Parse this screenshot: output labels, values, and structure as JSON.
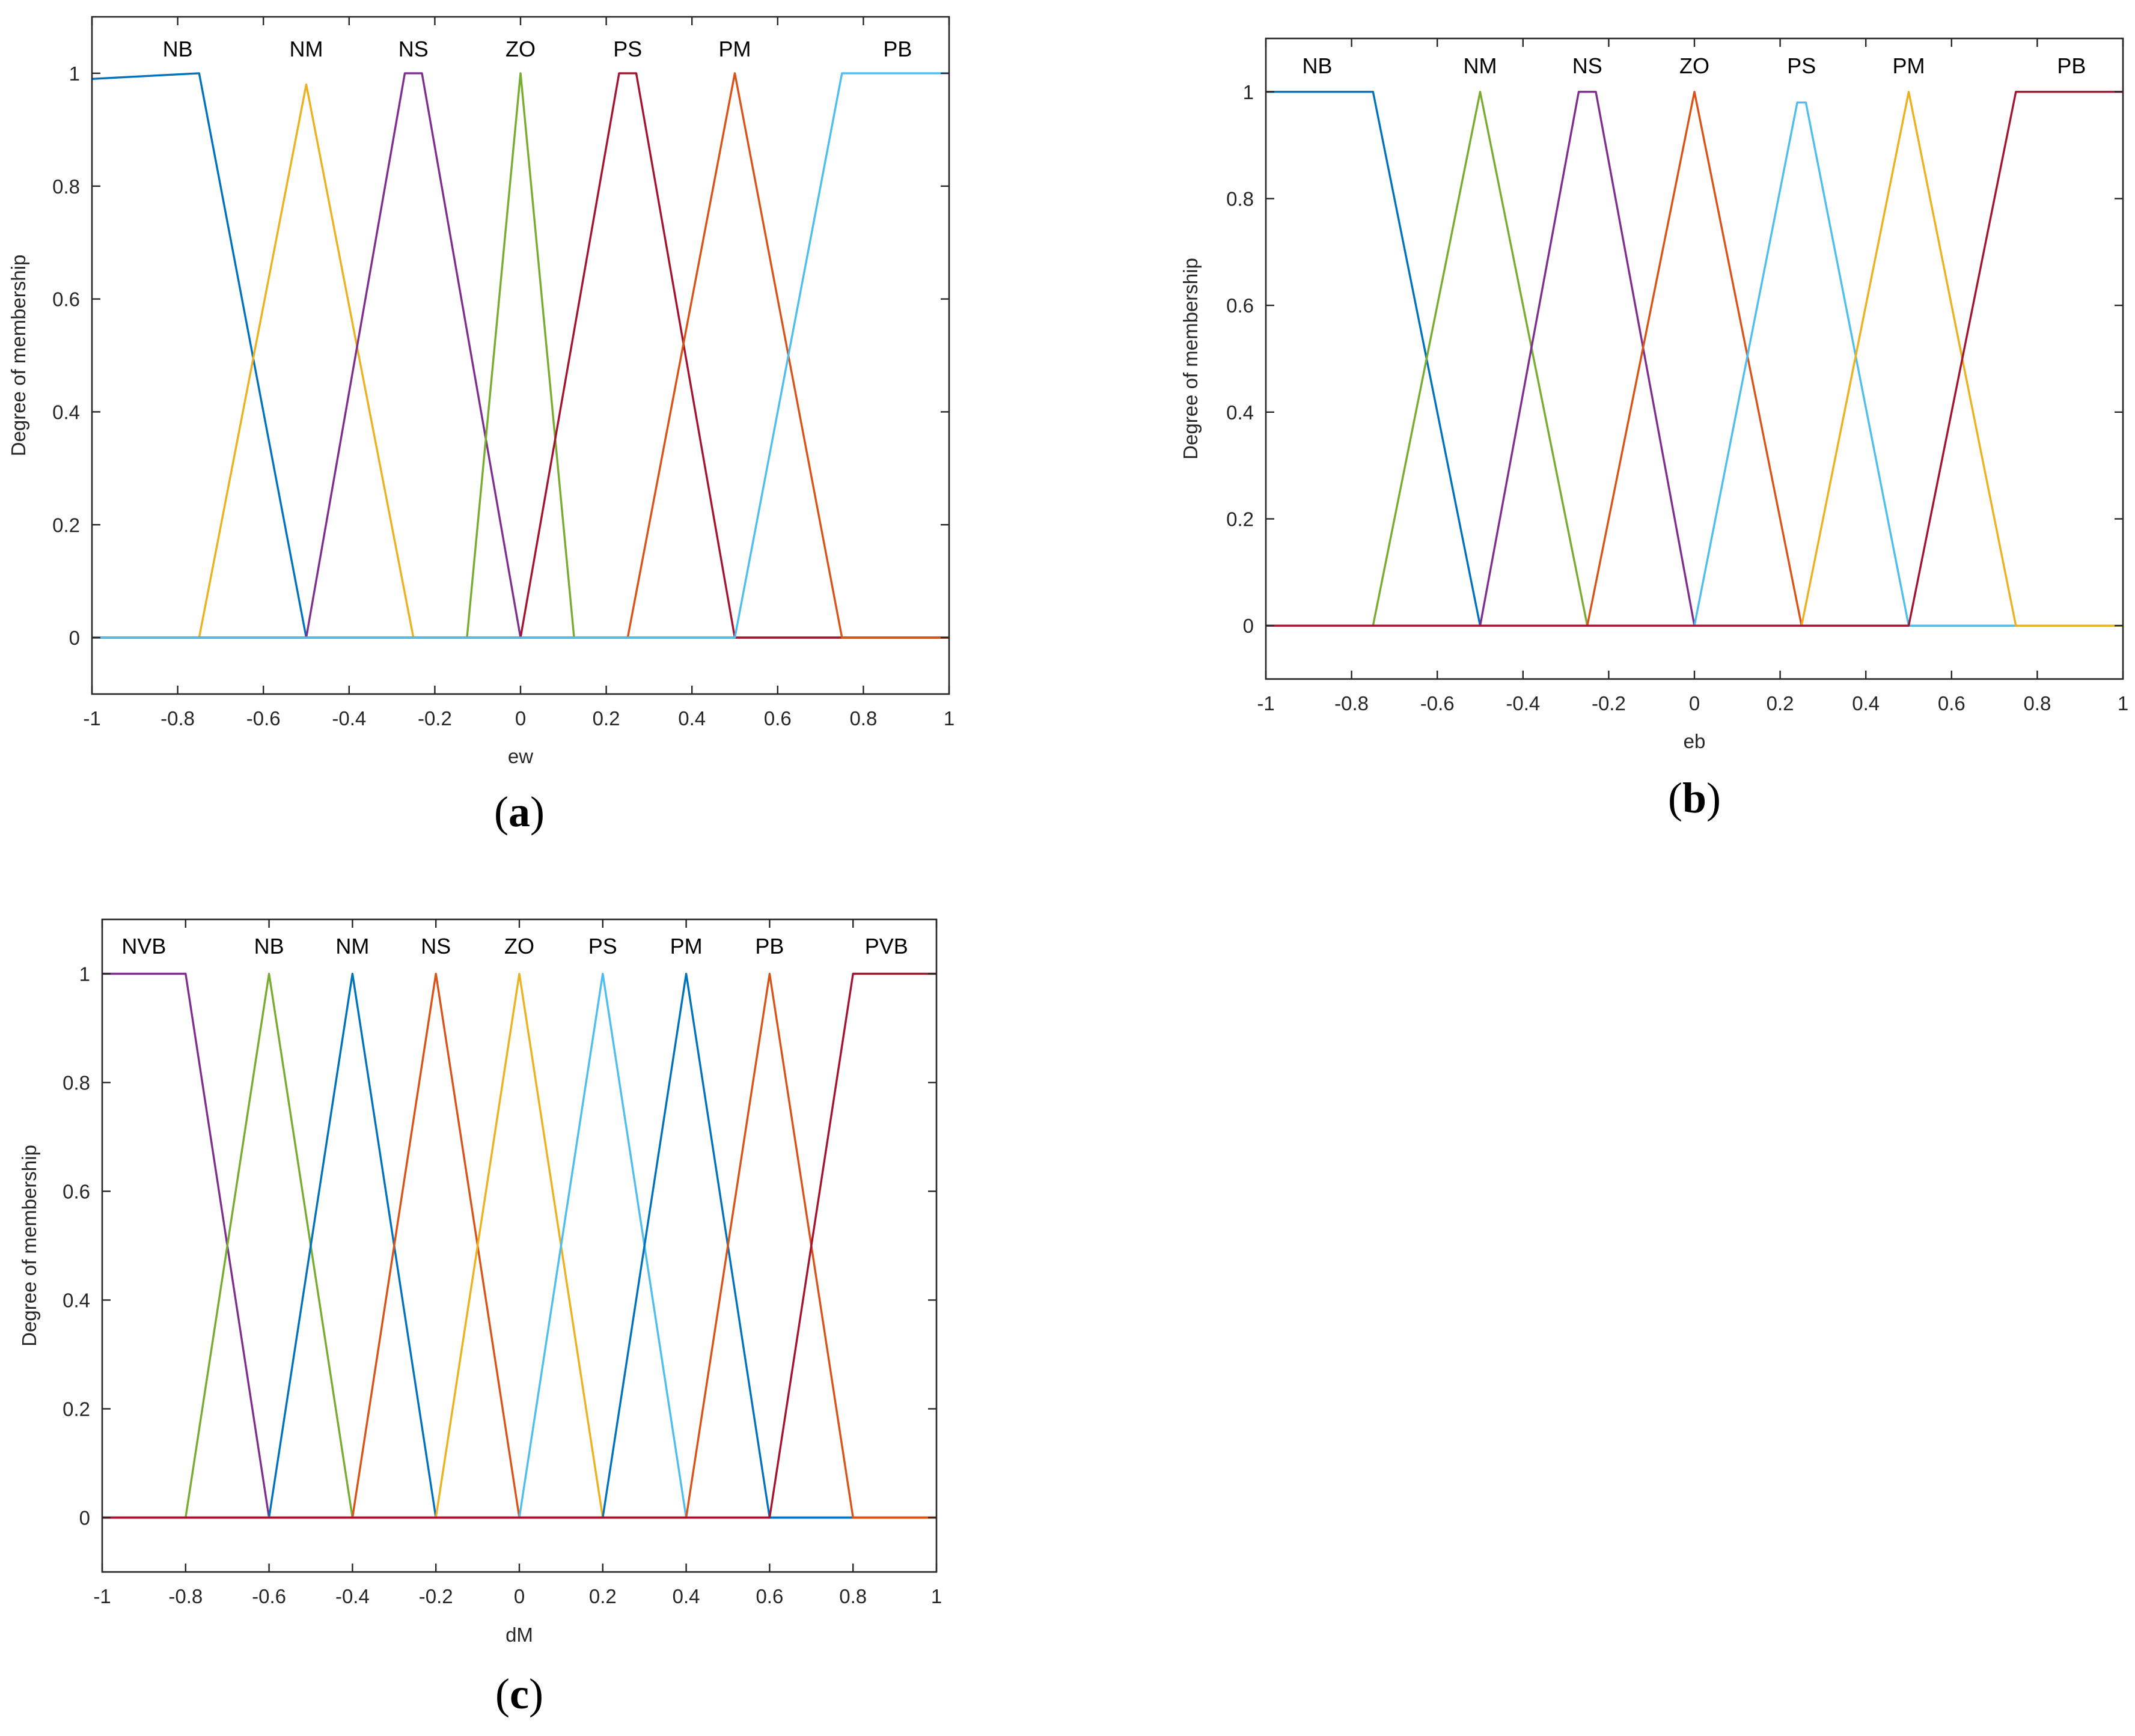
{
  "colors": {
    "blue": "#0072BD",
    "orange": "#D95319",
    "yellow": "#EDB120",
    "purple": "#7E2F8E",
    "green": "#77AC30",
    "cyan": "#4DBEEE",
    "darkred": "#A2142F",
    "axes": "#262626"
  },
  "chart_data": [
    {
      "type": "line",
      "caption_letter": "a",
      "xlabel": "ew",
      "ylabel": "Degree of membership",
      "xlim": [
        -1,
        1
      ],
      "ylim": [
        -0.1,
        1.1
      ],
      "xticks": [
        "-1",
        "-0.8",
        "-0.6",
        "-0.4",
        "-0.2",
        "0",
        "0.2",
        "0.4",
        "0.6",
        "0.8",
        "1"
      ],
      "yticks": [
        "0",
        "0.2",
        "0.4",
        "0.6",
        "0.8",
        "1"
      ],
      "series": [
        {
          "name": "NB",
          "color": "#0072BD",
          "label_x": -0.8,
          "points": [
            [
              -1,
              0.99
            ],
            [
              -0.75,
              1
            ],
            [
              -0.5,
              0
            ],
            [
              1,
              0
            ]
          ]
        },
        {
          "name": "NM",
          "color": "#EDB120",
          "label_x": -0.5,
          "points": [
            [
              -1,
              0
            ],
            [
              -0.75,
              0
            ],
            [
              -0.5,
              0.98
            ],
            [
              -0.25,
              0
            ],
            [
              1,
              0
            ]
          ]
        },
        {
          "name": "NS",
          "color": "#7E2F8E",
          "label_x": -0.25,
          "points": [
            [
              -1,
              0
            ],
            [
              -0.5,
              0
            ],
            [
              -0.27,
              1
            ],
            [
              -0.23,
              1
            ],
            [
              0,
              0
            ],
            [
              1,
              0
            ]
          ]
        },
        {
          "name": "ZO",
          "color": "#77AC30",
          "label_x": 0,
          "points": [
            [
              -1,
              0
            ],
            [
              -0.125,
              0
            ],
            [
              0,
              1
            ],
            [
              0.125,
              0
            ],
            [
              1,
              0
            ]
          ]
        },
        {
          "name": "PS",
          "color": "#A2142F",
          "label_x": 0.25,
          "points": [
            [
              -1,
              0
            ],
            [
              0,
              0
            ],
            [
              0.23,
              1
            ],
            [
              0.27,
              1
            ],
            [
              0.5,
              0
            ],
            [
              1,
              0
            ]
          ]
        },
        {
          "name": "PM",
          "color": "#D95319",
          "label_x": 0.5,
          "points": [
            [
              -1,
              0
            ],
            [
              0.25,
              0
            ],
            [
              0.5,
              1
            ],
            [
              0.75,
              0
            ],
            [
              1,
              0
            ]
          ]
        },
        {
          "name": "PB",
          "color": "#4DBEEE",
          "label_x": 0.88,
          "points": [
            [
              -1,
              0
            ],
            [
              0.5,
              0
            ],
            [
              0.75,
              1
            ],
            [
              1,
              1
            ]
          ]
        }
      ]
    },
    {
      "type": "line",
      "caption_letter": "b",
      "xlabel": "eb",
      "ylabel": "Degree of membership",
      "xlim": [
        -1,
        1
      ],
      "ylim": [
        -0.1,
        1.1
      ],
      "xticks": [
        "-1",
        "-0.8",
        "-0.6",
        "-0.4",
        "-0.2",
        "0",
        "0.2",
        "0.4",
        "0.6",
        "0.8",
        "1"
      ],
      "yticks": [
        "0",
        "0.2",
        "0.4",
        "0.6",
        "0.8",
        "1"
      ],
      "series": [
        {
          "name": "NB",
          "color": "#0072BD",
          "label_x": -0.88,
          "points": [
            [
              -1,
              1
            ],
            [
              -0.75,
              1
            ],
            [
              -0.5,
              0
            ],
            [
              1,
              0
            ]
          ]
        },
        {
          "name": "NM",
          "color": "#77AC30",
          "label_x": -0.5,
          "points": [
            [
              -1,
              0
            ],
            [
              -0.75,
              0
            ],
            [
              -0.5,
              1
            ],
            [
              -0.25,
              0
            ],
            [
              1,
              0
            ]
          ]
        },
        {
          "name": "NS",
          "color": "#7E2F8E",
          "label_x": -0.25,
          "points": [
            [
              -1,
              0
            ],
            [
              -0.5,
              0
            ],
            [
              -0.27,
              1
            ],
            [
              -0.23,
              1
            ],
            [
              0,
              0
            ],
            [
              1,
              0
            ]
          ]
        },
        {
          "name": "ZO",
          "color": "#D95319",
          "label_x": 0,
          "points": [
            [
              -1,
              0
            ],
            [
              -0.25,
              0
            ],
            [
              0,
              1
            ],
            [
              0.25,
              0
            ],
            [
              1,
              0
            ]
          ]
        },
        {
          "name": "PS",
          "color": "#4DBEEE",
          "label_x": 0.25,
          "points": [
            [
              -1,
              0
            ],
            [
              0,
              0
            ],
            [
              0.24,
              0.98
            ],
            [
              0.26,
              0.98
            ],
            [
              0.5,
              0
            ],
            [
              1,
              0
            ]
          ]
        },
        {
          "name": "PM",
          "color": "#EDB120",
          "label_x": 0.5,
          "points": [
            [
              -1,
              0
            ],
            [
              0.25,
              0
            ],
            [
              0.5,
              1
            ],
            [
              0.75,
              0
            ],
            [
              1,
              0
            ]
          ]
        },
        {
          "name": "PB",
          "color": "#A2142F",
          "label_x": 0.88,
          "points": [
            [
              -1,
              0
            ],
            [
              0.5,
              0
            ],
            [
              0.75,
              1
            ],
            [
              1,
              1
            ]
          ]
        }
      ]
    },
    {
      "type": "line",
      "caption_letter": "c",
      "xlabel": "dM",
      "ylabel": "Degree of membership",
      "xlim": [
        -1,
        1
      ],
      "ylim": [
        -0.1,
        1.1
      ],
      "xticks": [
        "-1",
        "-0.8",
        "-0.6",
        "-0.4",
        "-0.2",
        "0",
        "0.2",
        "0.4",
        "0.6",
        "0.8",
        "1"
      ],
      "yticks": [
        "0",
        "0.2",
        "0.4",
        "0.6",
        "0.8",
        "1"
      ],
      "series": [
        {
          "name": "NVB",
          "color": "#7E2F8E",
          "label_x": -0.9,
          "points": [
            [
              -1,
              1
            ],
            [
              -0.8,
              1
            ],
            [
              -0.6,
              0
            ],
            [
              1,
              0
            ]
          ]
        },
        {
          "name": "NB",
          "color": "#77AC30",
          "label_x": -0.6,
          "points": [
            [
              -1,
              0
            ],
            [
              -0.8,
              0
            ],
            [
              -0.6,
              1
            ],
            [
              -0.4,
              0
            ],
            [
              1,
              0
            ]
          ]
        },
        {
          "name": "NM",
          "color": "#0072BD",
          "label_x": -0.4,
          "points": [
            [
              -1,
              0
            ],
            [
              -0.6,
              0
            ],
            [
              -0.4,
              1
            ],
            [
              -0.2,
              0
            ],
            [
              1,
              0
            ]
          ]
        },
        {
          "name": "NS",
          "color": "#D95319",
          "label_x": -0.2,
          "points": [
            [
              -1,
              0
            ],
            [
              -0.4,
              0
            ],
            [
              -0.2,
              1
            ],
            [
              0,
              0
            ],
            [
              1,
              0
            ]
          ]
        },
        {
          "name": "ZO",
          "color": "#EDB120",
          "label_x": 0,
          "points": [
            [
              -1,
              0
            ],
            [
              -0.2,
              0
            ],
            [
              0,
              1
            ],
            [
              0.2,
              0
            ],
            [
              1,
              0
            ]
          ]
        },
        {
          "name": "PS",
          "color": "#4DBEEE",
          "label_x": 0.2,
          "points": [
            [
              -1,
              0
            ],
            [
              0,
              0
            ],
            [
              0.2,
              1
            ],
            [
              0.4,
              0
            ],
            [
              1,
              0
            ]
          ]
        },
        {
          "name": "PM",
          "color": "#0072BD",
          "label_x": 0.4,
          "points": [
            [
              -1,
              0
            ],
            [
              0.2,
              0
            ],
            [
              0.4,
              1
            ],
            [
              0.6,
              0
            ],
            [
              1,
              0
            ]
          ]
        },
        {
          "name": "PB",
          "color": "#D95319",
          "label_x": 0.6,
          "points": [
            [
              -1,
              0
            ],
            [
              0.4,
              0
            ],
            [
              0.6,
              1
            ],
            [
              0.8,
              0
            ],
            [
              1,
              0
            ]
          ]
        },
        {
          "name": "PVB",
          "color": "#A2142F",
          "label_x": 0.88,
          "points": [
            [
              -1,
              0
            ],
            [
              0.6,
              0
            ],
            [
              0.8,
              1
            ],
            [
              1,
              1
            ]
          ]
        }
      ]
    }
  ]
}
